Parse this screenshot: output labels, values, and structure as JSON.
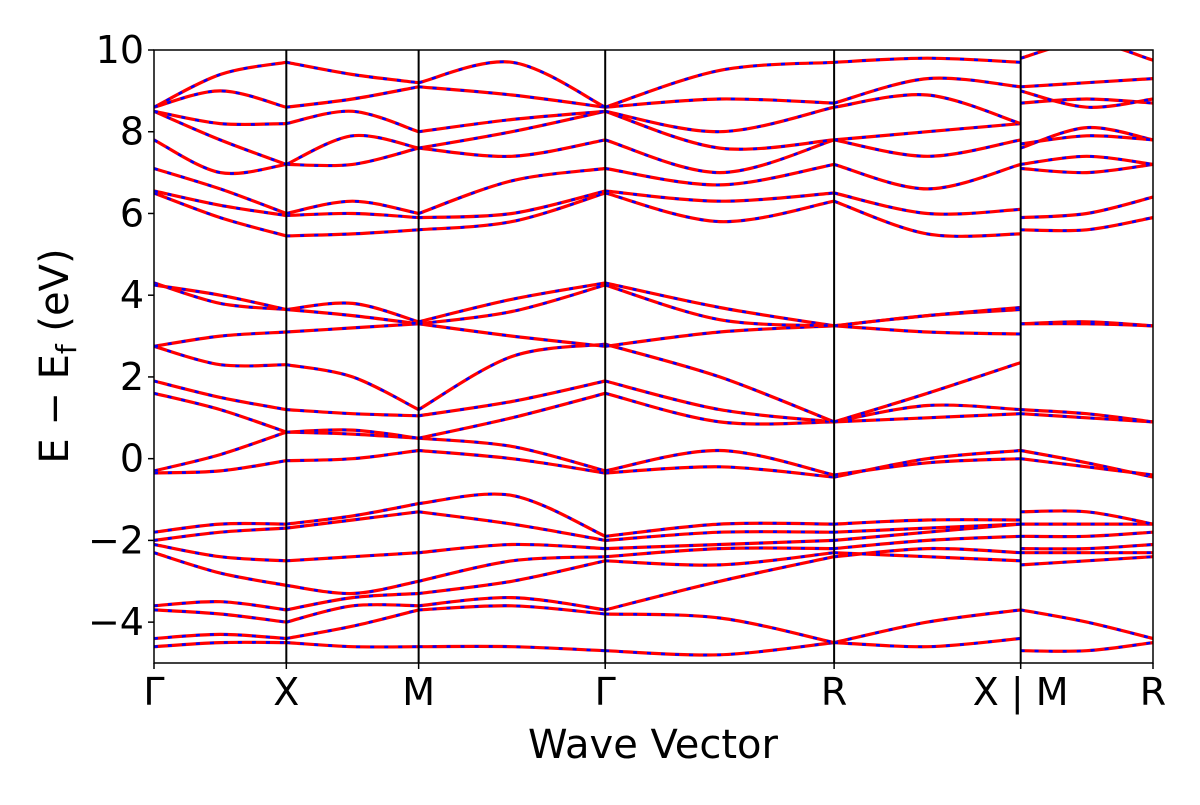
{
  "chart_data": {
    "type": "line",
    "title": "",
    "xlabel": "Wave Vector",
    "ylabel": {
      "prefix": "E − E",
      "subscript": "f",
      "suffix": " (eV)"
    },
    "ylim": [
      -5,
      10
    ],
    "yticks": [
      "−4",
      "−2",
      "0",
      "2",
      "4",
      "6",
      "8",
      "10"
    ],
    "ytick_values": [
      -4,
      -2,
      0,
      2,
      4,
      6,
      8,
      10
    ],
    "xlim": [
      0,
      7.55
    ],
    "high_symmetry_points": [
      {
        "label": "Γ",
        "x": 0
      },
      {
        "label": "X",
        "x": 1.0
      },
      {
        "label": "M",
        "x": 2.0
      },
      {
        "label": "Γ",
        "x": 3.41
      },
      {
        "label": "R",
        "x": 5.14
      },
      {
        "label": "X | M",
        "x": 6.55
      },
      {
        "label": "R",
        "x": 7.55
      }
    ],
    "series_styles": [
      {
        "role": "solid",
        "color": "#ff0000"
      },
      {
        "role": "dashed-overlay",
        "color": "#0000ff"
      }
    ],
    "segments": [
      {
        "from": "Γ",
        "to": "X",
        "x0": 0,
        "x1": 1.0,
        "bands": [
          [
            -4.6,
            -4.5,
            -4.5
          ],
          [
            -4.4,
            -4.3,
            -4.4
          ],
          [
            -3.7,
            -3.8,
            -4.0
          ],
          [
            -3.6,
            -3.5,
            -3.7
          ],
          [
            -2.3,
            -2.8,
            -3.1
          ],
          [
            -2.1,
            -2.4,
            -2.5
          ],
          [
            -2.0,
            -1.8,
            -1.7
          ],
          [
            -1.8,
            -1.6,
            -1.6
          ],
          [
            -0.35,
            -0.3,
            -0.05
          ],
          [
            -0.3,
            0.1,
            0.65
          ],
          [
            1.6,
            1.2,
            0.65
          ],
          [
            1.9,
            1.5,
            1.2
          ],
          [
            2.75,
            2.3,
            2.3
          ],
          [
            2.75,
            3.0,
            3.1
          ],
          [
            4.3,
            3.8,
            3.65
          ],
          [
            4.25,
            4.0,
            3.65
          ],
          [
            6.5,
            5.9,
            5.45
          ],
          [
            6.55,
            6.2,
            5.95
          ],
          [
            7.1,
            6.6,
            6.0
          ],
          [
            7.8,
            7.0,
            7.2
          ],
          [
            8.5,
            7.8,
            7.2
          ],
          [
            8.5,
            8.2,
            8.2
          ],
          [
            8.6,
            9.0,
            8.6
          ],
          [
            8.6,
            9.4,
            9.7
          ]
        ]
      },
      {
        "from": "X",
        "to": "M",
        "x0": 1.0,
        "x1": 2.0,
        "bands": [
          [
            -4.5,
            -4.6,
            -4.6
          ],
          [
            -4.4,
            -4.1,
            -3.7
          ],
          [
            -4.0,
            -3.6,
            -3.6
          ],
          [
            -3.7,
            -3.4,
            -3.3
          ],
          [
            -3.1,
            -3.3,
            -3.0
          ],
          [
            -2.5,
            -2.4,
            -2.3
          ],
          [
            -1.7,
            -1.5,
            -1.3
          ],
          [
            -1.6,
            -1.4,
            -1.1
          ],
          [
            -0.05,
            0.0,
            0.2
          ],
          [
            0.65,
            0.6,
            0.5
          ],
          [
            0.65,
            0.7,
            0.5
          ],
          [
            1.2,
            1.1,
            1.05
          ],
          [
            2.3,
            2.0,
            1.2
          ],
          [
            3.1,
            3.2,
            3.3
          ],
          [
            3.65,
            3.8,
            3.35
          ],
          [
            3.65,
            3.5,
            3.3
          ],
          [
            5.45,
            5.5,
            5.6
          ],
          [
            5.95,
            6.0,
            5.9
          ],
          [
            6.0,
            6.3,
            6.0
          ],
          [
            7.2,
            7.2,
            7.6
          ],
          [
            7.2,
            7.9,
            7.6
          ],
          [
            8.2,
            8.5,
            8.0
          ],
          [
            8.6,
            8.8,
            9.1
          ],
          [
            9.7,
            9.4,
            9.2
          ]
        ]
      },
      {
        "from": "M",
        "to": "Γ",
        "x0": 2.0,
        "x1": 3.41,
        "bands": [
          [
            -4.6,
            -4.6,
            -4.7
          ],
          [
            -3.7,
            -3.6,
            -3.8
          ],
          [
            -3.6,
            -3.4,
            -3.7
          ],
          [
            -3.3,
            -3.0,
            -2.5
          ],
          [
            -3.0,
            -2.5,
            -2.4
          ],
          [
            -2.3,
            -2.1,
            -2.2
          ],
          [
            -1.3,
            -1.6,
            -2.0
          ],
          [
            -1.1,
            -0.9,
            -1.9
          ],
          [
            0.2,
            0.0,
            -0.35
          ],
          [
            0.5,
            0.3,
            -0.3
          ],
          [
            0.5,
            1.0,
            1.6
          ],
          [
            1.05,
            1.4,
            1.9
          ],
          [
            1.2,
            2.5,
            2.8
          ],
          [
            3.3,
            3.0,
            2.75
          ],
          [
            3.35,
            3.9,
            4.3
          ],
          [
            3.3,
            3.6,
            4.25
          ],
          [
            5.6,
            5.8,
            6.5
          ],
          [
            5.9,
            6.0,
            6.55
          ],
          [
            6.0,
            6.8,
            7.1
          ],
          [
            7.6,
            7.4,
            7.8
          ],
          [
            7.6,
            8.0,
            8.5
          ],
          [
            8.0,
            8.3,
            8.5
          ],
          [
            9.1,
            8.9,
            8.6
          ],
          [
            9.2,
            9.7,
            8.6
          ]
        ]
      },
      {
        "from": "Γ",
        "to": "R",
        "x0": 3.41,
        "x1": 5.14,
        "bands": [
          [
            -4.7,
            -4.8,
            -4.5
          ],
          [
            -3.8,
            -3.9,
            -4.5
          ],
          [
            -3.7,
            -3.0,
            -2.4
          ],
          [
            -2.5,
            -2.6,
            -2.3
          ],
          [
            -2.4,
            -2.2,
            -2.2
          ],
          [
            -2.2,
            -2.1,
            -2.0
          ],
          [
            -2.0,
            -1.8,
            -1.8
          ],
          [
            -1.9,
            -1.6,
            -1.6
          ],
          [
            -0.35,
            -0.2,
            -0.45
          ],
          [
            -0.3,
            0.2,
            -0.4
          ],
          [
            1.6,
            0.9,
            0.9
          ],
          [
            1.9,
            1.2,
            0.9
          ],
          [
            2.8,
            2.0,
            0.9
          ],
          [
            2.75,
            3.1,
            3.25
          ],
          [
            4.3,
            3.7,
            3.25
          ],
          [
            4.25,
            3.4,
            3.25
          ],
          [
            6.5,
            5.8,
            6.3
          ],
          [
            6.55,
            6.3,
            6.5
          ],
          [
            7.1,
            6.7,
            7.2
          ],
          [
            7.8,
            7.0,
            7.8
          ],
          [
            8.5,
            7.6,
            7.8
          ],
          [
            8.5,
            8.0,
            8.6
          ],
          [
            8.6,
            8.8,
            8.7
          ],
          [
            8.6,
            9.5,
            9.7
          ]
        ]
      },
      {
        "from": "R",
        "to": "X",
        "x0": 5.14,
        "x1": 6.55,
        "bands": [
          [
            -4.5,
            -4.0,
            -3.7
          ],
          [
            -4.5,
            -4.6,
            -4.4
          ],
          [
            -2.4,
            -2.2,
            -2.3
          ],
          [
            -2.3,
            -2.4,
            -2.5
          ],
          [
            -2.2,
            -2.0,
            -1.9
          ],
          [
            -2.0,
            -1.8,
            -1.6
          ],
          [
            -1.8,
            -1.7,
            -1.6
          ],
          [
            -1.6,
            -1.5,
            -1.5
          ],
          [
            -0.45,
            0.0,
            0.2
          ],
          [
            -0.4,
            -0.1,
            0.0
          ],
          [
            0.9,
            1.0,
            1.1
          ],
          [
            0.9,
            1.3,
            1.2
          ],
          [
            0.9,
            1.6,
            2.35
          ],
          [
            3.25,
            3.1,
            3.05
          ],
          [
            3.25,
            3.5,
            3.65
          ],
          [
            3.25,
            3.5,
            3.7
          ],
          [
            6.3,
            5.5,
            5.5
          ],
          [
            6.5,
            6.0,
            6.1
          ],
          [
            7.2,
            6.6,
            7.2
          ],
          [
            7.8,
            7.4,
            7.8
          ],
          [
            7.8,
            8.0,
            8.2
          ],
          [
            8.6,
            8.9,
            8.2
          ],
          [
            8.7,
            9.3,
            9.1
          ],
          [
            9.7,
            9.8,
            9.7
          ]
        ]
      },
      {
        "from": "M",
        "to": "R",
        "x0": 6.55,
        "x1": 7.55,
        "bands": [
          [
            -4.7,
            -4.7,
            -4.5
          ],
          [
            -3.7,
            -4.0,
            -4.4
          ],
          [
            -2.6,
            -2.5,
            -2.4
          ],
          [
            -2.3,
            -2.3,
            -2.3
          ],
          [
            -2.2,
            -2.2,
            -2.1
          ],
          [
            -1.9,
            -1.9,
            -1.8
          ],
          [
            -1.6,
            -1.6,
            -1.6
          ],
          [
            -1.3,
            -1.3,
            -1.6
          ],
          [
            0.2,
            -0.1,
            -0.45
          ],
          [
            0.0,
            -0.2,
            -0.4
          ],
          [
            1.2,
            1.1,
            0.9
          ],
          [
            1.1,
            1.0,
            0.9
          ],
          [
            3.3,
            3.35,
            3.25
          ],
          [
            3.3,
            3.3,
            3.25
          ],
          [
            5.6,
            5.6,
            5.9
          ],
          [
            5.9,
            6.0,
            6.4
          ],
          [
            7.1,
            7.0,
            7.2
          ],
          [
            7.2,
            7.4,
            7.2
          ],
          [
            7.6,
            8.1,
            7.8
          ],
          [
            7.7,
            7.9,
            7.8
          ],
          [
            8.7,
            8.8,
            8.7
          ],
          [
            9.0,
            8.6,
            8.8
          ],
          [
            9.1,
            9.2,
            9.3
          ],
          [
            9.8,
            10.2,
            9.75
          ]
        ]
      }
    ]
  }
}
